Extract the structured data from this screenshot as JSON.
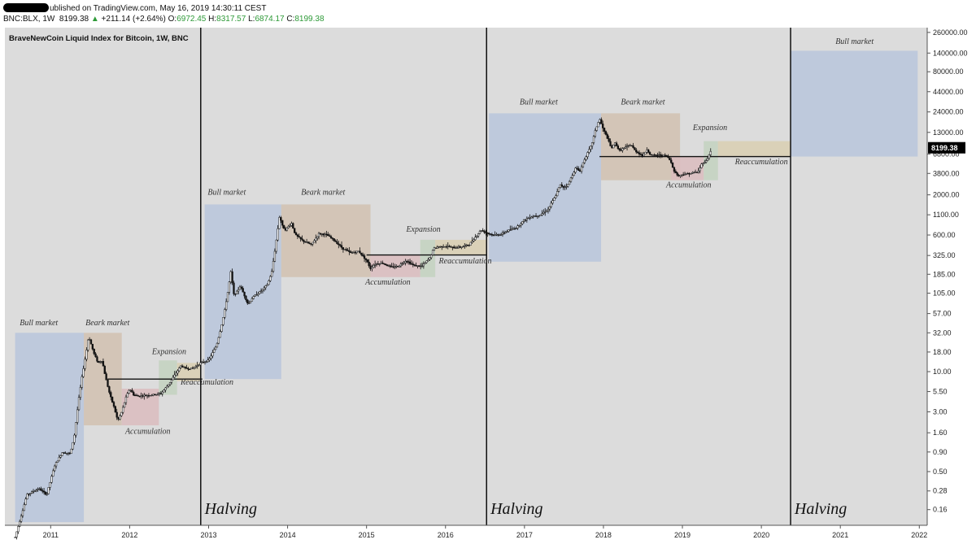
{
  "header": {
    "line1": "ublished on TradingView.com, May 16, 2019 14:30:11 CEST",
    "symbol": "BNC:BLX, 1W",
    "last": "8199.38",
    "arrow": "▲",
    "change": "+211.14 (+2.64%)",
    "o_label": "O:",
    "o_val": "6972.45",
    "h_label": "H:",
    "h_val": "8317.57",
    "l_label": "L:",
    "l_val": "6874.17",
    "c_label": "C:",
    "c_val": "8199.38"
  },
  "chart_data": {
    "type": "candlestick",
    "title": "BraveNewCoin Liquid Index for Bitcoin, 1W, BNC",
    "y_scale": "log",
    "ylim": [
      0.1,
      300000
    ],
    "y_ticks": [
      {
        "v": 260000,
        "label": "260000.00"
      },
      {
        "v": 140000,
        "label": "140000.00"
      },
      {
        "v": 80000,
        "label": "80000.00"
      },
      {
        "v": 44000,
        "label": "44000.00"
      },
      {
        "v": 24000,
        "label": "24000.00"
      },
      {
        "v": 13000,
        "label": "13000.00"
      },
      {
        "v": 6800,
        "label": "6800.00"
      },
      {
        "v": 3800,
        "label": "3800.00"
      },
      {
        "v": 2000,
        "label": "2000.00"
      },
      {
        "v": 1100,
        "label": "1100.00"
      },
      {
        "v": 600,
        "label": "600.00"
      },
      {
        "v": 325,
        "label": "325.00"
      },
      {
        "v": 185,
        "label": "185.00"
      },
      {
        "v": 105,
        "label": "105.00"
      },
      {
        "v": 57,
        "label": "57.00"
      },
      {
        "v": 32,
        "label": "32.00"
      },
      {
        "v": 18,
        "label": "18.00"
      },
      {
        "v": 10,
        "label": "10.00"
      },
      {
        "v": 5.5,
        "label": "5.50"
      },
      {
        "v": 3,
        "label": "3.00"
      },
      {
        "v": 1.6,
        "label": "1.60"
      },
      {
        "v": 0.9,
        "label": "0.90"
      },
      {
        "v": 0.5,
        "label": "0.50"
      },
      {
        "v": 0.28,
        "label": "0.28"
      },
      {
        "v": 0.16,
        "label": "0.16"
      }
    ],
    "x_ticks": [
      {
        "year": 2011,
        "label": "2011"
      },
      {
        "year": 2012,
        "label": "2012"
      },
      {
        "year": 2013,
        "label": "2013"
      },
      {
        "year": 2014,
        "label": "2014"
      },
      {
        "year": 2015,
        "label": "2015"
      },
      {
        "year": 2016,
        "label": "2016"
      },
      {
        "year": 2017,
        "label": "2017"
      },
      {
        "year": 2018,
        "label": "2018"
      },
      {
        "year": 2019,
        "label": "2019"
      },
      {
        "year": 2020,
        "label": "2020"
      },
      {
        "year": 2021,
        "label": "2021"
      },
      {
        "year": 2022,
        "label": "2022"
      }
    ],
    "last_price": 8199.38,
    "last_price_label": "8199.38",
    "price_path": [
      [
        2010.55,
        0.07
      ],
      [
        2010.7,
        0.25
      ],
      [
        2010.85,
        0.3
      ],
      [
        2010.95,
        0.25
      ],
      [
        2011.05,
        0.6
      ],
      [
        2011.15,
        0.9
      ],
      [
        2011.25,
        0.85
      ],
      [
        2011.3,
        1.5
      ],
      [
        2011.35,
        4
      ],
      [
        2011.4,
        9
      ],
      [
        2011.45,
        18
      ],
      [
        2011.48,
        29
      ],
      [
        2011.55,
        17
      ],
      [
        2011.6,
        13
      ],
      [
        2011.65,
        14
      ],
      [
        2011.7,
        8
      ],
      [
        2011.75,
        5
      ],
      [
        2011.8,
        3.5
      ],
      [
        2011.85,
        2.3
      ],
      [
        2011.9,
        3
      ],
      [
        2011.95,
        4.5
      ],
      [
        2012.0,
        6
      ],
      [
        2012.05,
        5
      ],
      [
        2012.1,
        4.8
      ],
      [
        2012.2,
        4.9
      ],
      [
        2012.3,
        5
      ],
      [
        2012.4,
        5.2
      ],
      [
        2012.5,
        7
      ],
      [
        2012.6,
        10
      ],
      [
        2012.65,
        12
      ],
      [
        2012.7,
        11
      ],
      [
        2012.8,
        11
      ],
      [
        2012.9,
        13
      ],
      [
        2013.0,
        14
      ],
      [
        2013.1,
        22
      ],
      [
        2013.15,
        35
      ],
      [
        2013.2,
        60
      ],
      [
        2013.25,
        120
      ],
      [
        2013.28,
        200
      ],
      [
        2013.32,
        100
      ],
      [
        2013.36,
        110
      ],
      [
        2013.4,
        130
      ],
      [
        2013.45,
        100
      ],
      [
        2013.5,
        75
      ],
      [
        2013.55,
        90
      ],
      [
        2013.6,
        100
      ],
      [
        2013.7,
        120
      ],
      [
        2013.75,
        140
      ],
      [
        2013.8,
        200
      ],
      [
        2013.85,
        450
      ],
      [
        2013.9,
        1100
      ],
      [
        2013.93,
        800
      ],
      [
        2013.97,
        700
      ],
      [
        2014.05,
        850
      ],
      [
        2014.1,
        600
      ],
      [
        2014.2,
        500
      ],
      [
        2014.3,
        450
      ],
      [
        2014.4,
        630
      ],
      [
        2014.5,
        600
      ],
      [
        2014.6,
        500
      ],
      [
        2014.7,
        400
      ],
      [
        2014.8,
        350
      ],
      [
        2014.9,
        370
      ],
      [
        2015.0,
        280
      ],
      [
        2015.05,
        220
      ],
      [
        2015.1,
        250
      ],
      [
        2015.2,
        260
      ],
      [
        2015.3,
        230
      ],
      [
        2015.4,
        235
      ],
      [
        2015.5,
        280
      ],
      [
        2015.6,
        240
      ],
      [
        2015.7,
        235
      ],
      [
        2015.8,
        300
      ],
      [
        2015.85,
        400
      ],
      [
        2015.9,
        420
      ],
      [
        2016.0,
        430
      ],
      [
        2016.1,
        410
      ],
      [
        2016.2,
        420
      ],
      [
        2016.3,
        450
      ],
      [
        2016.4,
        600
      ],
      [
        2016.45,
        700
      ],
      [
        2016.5,
        650
      ],
      [
        2016.6,
        600
      ],
      [
        2016.7,
        610
      ],
      [
        2016.8,
        690
      ],
      [
        2016.9,
        750
      ],
      [
        2017.0,
        950
      ],
      [
        2017.05,
        1000
      ],
      [
        2017.1,
        1050
      ],
      [
        2017.2,
        1100
      ],
      [
        2017.3,
        1300
      ],
      [
        2017.4,
        2000
      ],
      [
        2017.45,
        2700
      ],
      [
        2017.5,
        2500
      ],
      [
        2017.55,
        2700
      ],
      [
        2017.6,
        3500
      ],
      [
        2017.65,
        4500
      ],
      [
        2017.7,
        4000
      ],
      [
        2017.75,
        5500
      ],
      [
        2017.8,
        7000
      ],
      [
        2017.85,
        9000
      ],
      [
        2017.9,
        14000
      ],
      [
        2017.95,
        19500
      ],
      [
        2018.0,
        14000
      ],
      [
        2018.05,
        11000
      ],
      [
        2018.1,
        8000
      ],
      [
        2018.15,
        9500
      ],
      [
        2018.2,
        7500
      ],
      [
        2018.3,
        8500
      ],
      [
        2018.35,
        9000
      ],
      [
        2018.4,
        7500
      ],
      [
        2018.5,
        6400
      ],
      [
        2018.55,
        7800
      ],
      [
        2018.6,
        6500
      ],
      [
        2018.7,
        6600
      ],
      [
        2018.8,
        6400
      ],
      [
        2018.85,
        5500
      ],
      [
        2018.9,
        4000
      ],
      [
        2018.95,
        3500
      ],
      [
        2019.0,
        3700
      ],
      [
        2019.1,
        3800
      ],
      [
        2019.2,
        4000
      ],
      [
        2019.25,
        5200
      ],
      [
        2019.3,
        5500
      ],
      [
        2019.35,
        7000
      ],
      [
        2019.37,
        8199.38
      ]
    ],
    "phases": [
      {
        "type": "bull",
        "x0": 2010.55,
        "x1": 2011.42,
        "y0": 0.11,
        "y1": 32
      },
      {
        "type": "bear",
        "x0": 2011.42,
        "x1": 2011.9,
        "y0": 2,
        "y1": 32
      },
      {
        "type": "accum",
        "x0": 2011.9,
        "x1": 2012.37,
        "y0": 2,
        "y1": 6
      },
      {
        "type": "expansion",
        "x0": 2012.37,
        "x1": 2012.6,
        "y0": 5,
        "y1": 14
      },
      {
        "type": "reaccum",
        "x0": 2012.6,
        "x1": 2012.9,
        "y0": 7.5,
        "y1": 13
      },
      {
        "type": "bull",
        "x0": 2012.95,
        "x1": 2013.92,
        "y0": 8,
        "y1": 1500
      },
      {
        "type": "bear",
        "x0": 2013.92,
        "x1": 2015.05,
        "y0": 170,
        "y1": 1500
      },
      {
        "type": "accum",
        "x0": 2015.05,
        "x1": 2015.68,
        "y0": 170,
        "y1": 330
      },
      {
        "type": "expansion",
        "x0": 2015.68,
        "x1": 2015.87,
        "y0": 170,
        "y1": 520
      },
      {
        "type": "reaccum",
        "x0": 2015.87,
        "x1": 2016.52,
        "y0": 330,
        "y1": 520
      },
      {
        "type": "bull",
        "x0": 2016.55,
        "x1": 2017.97,
        "y0": 270,
        "y1": 23000
      },
      {
        "type": "bear",
        "x0": 2017.97,
        "x1": 2018.97,
        "y0": 3100,
        "y1": 23000
      },
      {
        "type": "accum",
        "x0": 2018.86,
        "x1": 2019.27,
        "y0": 3100,
        "y1": 6300
      },
      {
        "type": "expansion",
        "x0": 2019.27,
        "x1": 2019.45,
        "y0": 3100,
        "y1": 10000
      },
      {
        "type": "reaccum",
        "x0": 2019.45,
        "x1": 2020.37,
        "y0": 6300,
        "y1": 10000
      },
      {
        "type": "bull",
        "x0": 2020.37,
        "x1": 2021.98,
        "y0": 6300,
        "y1": 150000
      }
    ],
    "levels": [
      {
        "x0": 2011.72,
        "x1": 2012.92,
        "y": 8
      },
      {
        "x0": 2015.0,
        "x1": 2016.52,
        "y": 330
      },
      {
        "x0": 2017.95,
        "x1": 2020.37,
        "y": 6300
      }
    ],
    "halvings": [
      2012.9,
      2016.52,
      2020.37
    ],
    "labels": {
      "bull": "Bull market",
      "bear": "Bearк market",
      "accum": "Accumulation",
      "expansion": "Expansion",
      "reaccum": "Reaccumulation",
      "halving": "Halving"
    },
    "annotations": [
      {
        "key": "bull",
        "text": "Bull market",
        "x": 2010.85,
        "y": 40
      },
      {
        "key": "bear",
        "text": "Beark market",
        "x": 2011.72,
        "y": 40
      },
      {
        "key": "expansion",
        "text": "Expansion",
        "x": 2012.5,
        "y": 17
      },
      {
        "key": "reaccum",
        "text": "Reaccumulation",
        "x": 2012.98,
        "y": 6.8
      },
      {
        "key": "accum",
        "text": "Accumulation",
        "x": 2012.23,
        "y": 1.55
      },
      {
        "key": "bull",
        "text": "Bull market",
        "x": 2013.23,
        "y": 2000
      },
      {
        "key": "bear",
        "text": "Beark market",
        "x": 2014.45,
        "y": 2000
      },
      {
        "key": "expansion",
        "text": "Expansion",
        "x": 2015.72,
        "y": 660
      },
      {
        "key": "reaccum",
        "text": "Reaccumulation",
        "x": 2016.25,
        "y": 255
      },
      {
        "key": "accum",
        "text": "Accumulation",
        "x": 2015.27,
        "y": 135
      },
      {
        "key": "bull",
        "text": "Bull market",
        "x": 2017.18,
        "y": 30000
      },
      {
        "key": "bear",
        "text": "Beark market",
        "x": 2018.5,
        "y": 30000
      },
      {
        "key": "expansion",
        "text": "Expansion",
        "x": 2019.35,
        "y": 14000
      },
      {
        "key": "reaccum",
        "text": "Reaccumulation",
        "x": 2020.0,
        "y": 5000
      },
      {
        "key": "accum",
        "text": "Accumulation",
        "x": 2019.08,
        "y": 2500
      },
      {
        "key": "bull",
        "text": "Bull market",
        "x": 2021.18,
        "y": 185000
      }
    ],
    "halving_labels": [
      {
        "text": "Halving",
        "x": 2012.95
      },
      {
        "text": "Halving",
        "x": 2016.57
      },
      {
        "text": "Halving",
        "x": 2020.42
      }
    ]
  },
  "colors": {
    "background": "#dcdcdc",
    "bull": "#b9c6dc",
    "bear": "#d1c1b0",
    "accum": "#dbbcbe",
    "expansion": "#c3d2bf",
    "reaccum": "#d9cfb2",
    "candle": "#111111",
    "tag_bg": "#000000"
  }
}
